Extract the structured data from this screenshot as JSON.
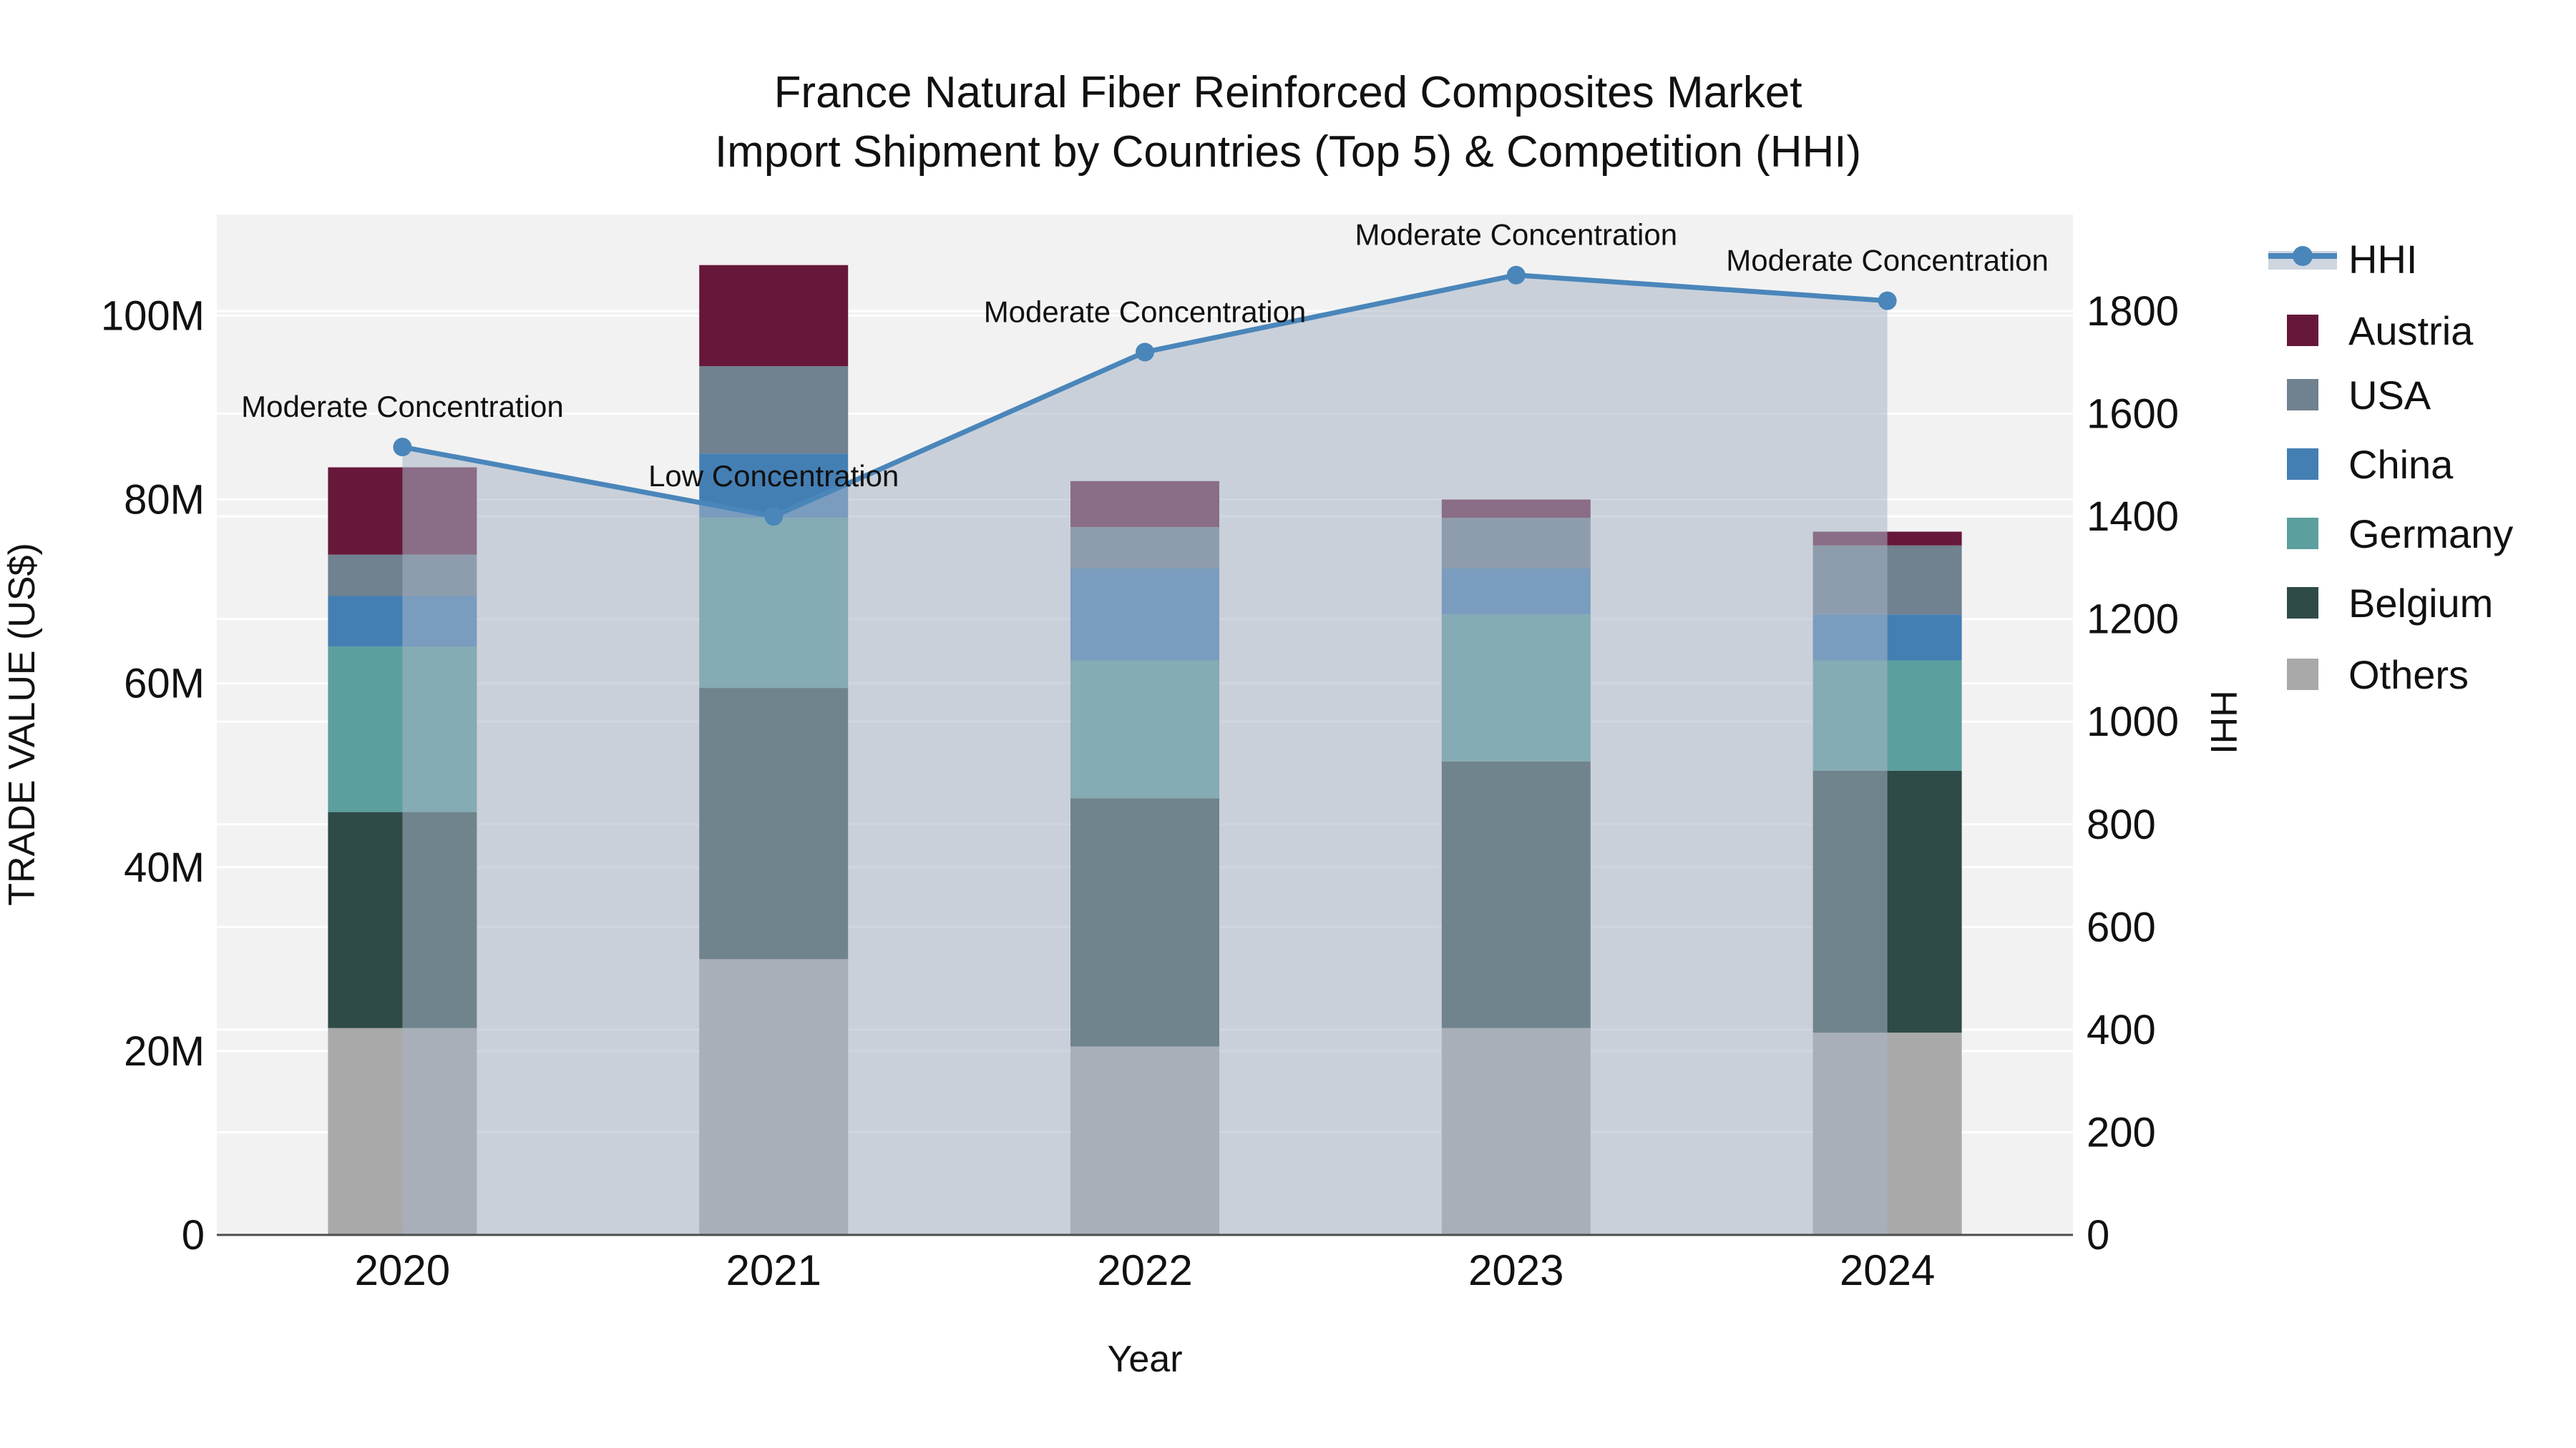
{
  "title": {
    "line1": "France Natural Fiber Reinforced Composites Market",
    "line2": "Import Shipment by Countries (Top 5) & Competition (HHI)"
  },
  "chart_data": {
    "type": "bar+line",
    "categories": [
      "2020",
      "2021",
      "2022",
      "2023",
      "2024"
    ],
    "xlabel": "Year",
    "ylabel": "TRADE VALUE (US$)",
    "y2label": "HHI",
    "bar_series": [
      {
        "name": "Others",
        "color": "#a9a9a9",
        "values": [
          22.5,
          30.0,
          20.5,
          22.5,
          22.0
        ]
      },
      {
        "name": "Belgium",
        "color": "#2e4b47",
        "values": [
          23.5,
          29.5,
          27.0,
          29.0,
          28.5
        ]
      },
      {
        "name": "Germany",
        "color": "#5b9f9e",
        "values": [
          18.0,
          18.5,
          15.0,
          16.0,
          12.0
        ]
      },
      {
        "name": "China",
        "color": "#447fb4",
        "values": [
          5.5,
          7.0,
          10.0,
          5.0,
          5.0
        ]
      },
      {
        "name": "USA",
        "color": "#70818f",
        "values": [
          4.5,
          9.5,
          4.5,
          5.5,
          7.5
        ]
      },
      {
        "name": "Austria",
        "color": "#67183a",
        "values": [
          9.5,
          11.0,
          5.0,
          2.0,
          1.5
        ]
      }
    ],
    "bar_totals": [
      83.5,
      105.5,
      82.0,
      80.0,
      76.5
    ],
    "line_series": {
      "name": "HHI",
      "color": "#4a86ba",
      "fill": "rgba(168,180,198,0.55)",
      "values": [
        1535,
        1400,
        1720,
        1870,
        1820
      ]
    },
    "annotations": [
      "Moderate Concentration",
      "Low Concentration",
      "Moderate Concentration",
      "Moderate Concentration",
      "Moderate Concentration"
    ],
    "axes": {
      "y_left": {
        "tick_labels": [
          "0",
          "20M",
          "40M",
          "60M",
          "80M",
          "100M"
        ],
        "tick_values": [
          0,
          20,
          40,
          60,
          80,
          100
        ],
        "range": [
          0,
          111
        ]
      },
      "y_right": {
        "tick_labels": [
          "0",
          "200",
          "400",
          "600",
          "800",
          "1000",
          "1200",
          "1400",
          "1600",
          "1800"
        ],
        "tick_values": [
          0,
          200,
          400,
          600,
          800,
          1000,
          1200,
          1400,
          1600,
          1800
        ],
        "range": [
          0,
          1988
        ]
      }
    },
    "legend": [
      {
        "label": "HHI",
        "type": "line",
        "color": "#4a86ba"
      },
      {
        "label": "Austria",
        "type": "box",
        "color": "#67183a"
      },
      {
        "label": "USA",
        "type": "box",
        "color": "#70818f"
      },
      {
        "label": "China",
        "type": "box",
        "color": "#447fb4"
      },
      {
        "label": "Germany",
        "type": "box",
        "color": "#5b9f9e"
      },
      {
        "label": "Belgium",
        "type": "box",
        "color": "#2e4b47"
      },
      {
        "label": "Others",
        "type": "box",
        "color": "#a9a9a9"
      }
    ],
    "colors": {
      "plot_bg": "#f2f2f2",
      "grid": "#ffffff",
      "axis_line": "#4d4d4d",
      "text": "#111111"
    },
    "grid_on": true,
    "legend_position": "right"
  }
}
